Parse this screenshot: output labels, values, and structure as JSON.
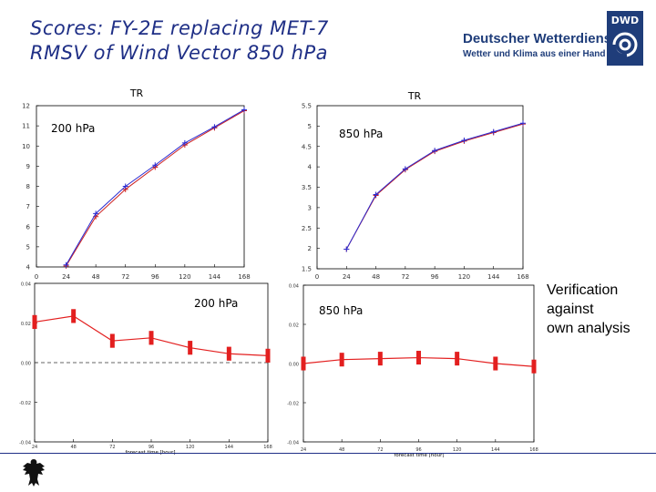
{
  "slide": {
    "title_line1": "Scores:  FY-2E replacing MET-7",
    "title_line2": "RMSV of Wind Vector 850 hPa",
    "logo_name": "Deutscher Wetterdienst",
    "logo_sub": "Wetter und Klima aus einer Hand",
    "logo_badge": "DWD",
    "side_note": [
      "Verification",
      "against",
      "own analysis"
    ]
  },
  "colors": {
    "title": "#1f2f86",
    "line_red": "#cc1f1f",
    "line_blue": "#2b2bd1",
    "bar_red": "#e31f1f"
  },
  "chart_data": [
    {
      "type": "line",
      "label": "TR",
      "panel_label": "200 hPa",
      "x": [
        24,
        48,
        72,
        96,
        120,
        144,
        168
      ],
      "xticks": [
        "0",
        "24",
        "48",
        "72",
        "96",
        "120",
        "144",
        "168"
      ],
      "xlim": [
        0,
        168
      ],
      "ylim": [
        4,
        12
      ],
      "yticks": [
        "4",
        "5",
        "6",
        "7",
        "8",
        "9",
        "10",
        "11",
        "12"
      ],
      "series": [
        {
          "name": "MET-7",
          "color": "#cc1f1f",
          "values": [
            4.05,
            6.5,
            7.85,
            8.95,
            10.05,
            10.9,
            11.75
          ]
        },
        {
          "name": "FY-2E",
          "color": "#2b2bd1",
          "values": [
            4.1,
            6.65,
            8.0,
            9.05,
            10.15,
            10.95,
            11.8
          ]
        }
      ]
    },
    {
      "type": "line",
      "label": "TR",
      "panel_label": "850 hPa",
      "x": [
        24,
        48,
        72,
        96,
        120,
        144,
        168
      ],
      "xticks": [
        "0",
        "24",
        "48",
        "72",
        "96",
        "120",
        "144",
        "168"
      ],
      "xlim": [
        0,
        168
      ],
      "ylim": [
        1.5,
        5.5
      ],
      "yticks": [
        "1.5",
        "2",
        "2.5",
        "3",
        "3.5",
        "4",
        "4.5",
        "5",
        "5.5"
      ],
      "series": [
        {
          "name": "MET-7",
          "color": "#cc1f1f",
          "values": [
            1.98,
            3.3,
            3.93,
            4.38,
            4.63,
            4.84,
            5.05
          ]
        },
        {
          "name": "FY-2E",
          "color": "#2b2bd1",
          "values": [
            1.98,
            3.32,
            3.95,
            4.4,
            4.65,
            4.86,
            5.07
          ]
        }
      ]
    },
    {
      "type": "errorbar",
      "panel_label": "200 hPa",
      "xlabel": "forecast time [hour]",
      "x": [
        24,
        48,
        72,
        96,
        120,
        144,
        168
      ],
      "xticks": [
        "24",
        "48",
        "72",
        "96",
        "120",
        "144",
        "168"
      ],
      "xlim": [
        24,
        168
      ],
      "ylim": [
        -0.04,
        0.04
      ],
      "yticks": [
        "0.04",
        "0.02",
        "0.00",
        "-0.02",
        "-0.04"
      ],
      "zero_line": true,
      "values": [
        0.0205,
        0.0235,
        0.011,
        0.0125,
        0.0075,
        0.0045,
        0.0035
      ],
      "err": [
        0.0035,
        0.0035,
        0.0035,
        0.0035,
        0.0035,
        0.0035,
        0.0035
      ]
    },
    {
      "type": "errorbar",
      "panel_label": "850 hPa",
      "xlabel": "forecast time [hour]",
      "x": [
        24,
        48,
        72,
        96,
        120,
        144,
        168
      ],
      "xticks": [
        "24",
        "48",
        "72",
        "96",
        "120",
        "144",
        "168"
      ],
      "xlim": [
        24,
        168
      ],
      "ylim": [
        -0.04,
        0.04
      ],
      "yticks": [
        "0.04",
        "0.02",
        "0.00",
        "-0.02",
        "-0.04"
      ],
      "zero_line": false,
      "values": [
        0.0,
        0.002,
        0.0025,
        0.003,
        0.0025,
        0.0,
        -0.0015
      ],
      "err": [
        0.0035,
        0.0035,
        0.0035,
        0.0035,
        0.0035,
        0.0035,
        0.0035
      ]
    }
  ]
}
